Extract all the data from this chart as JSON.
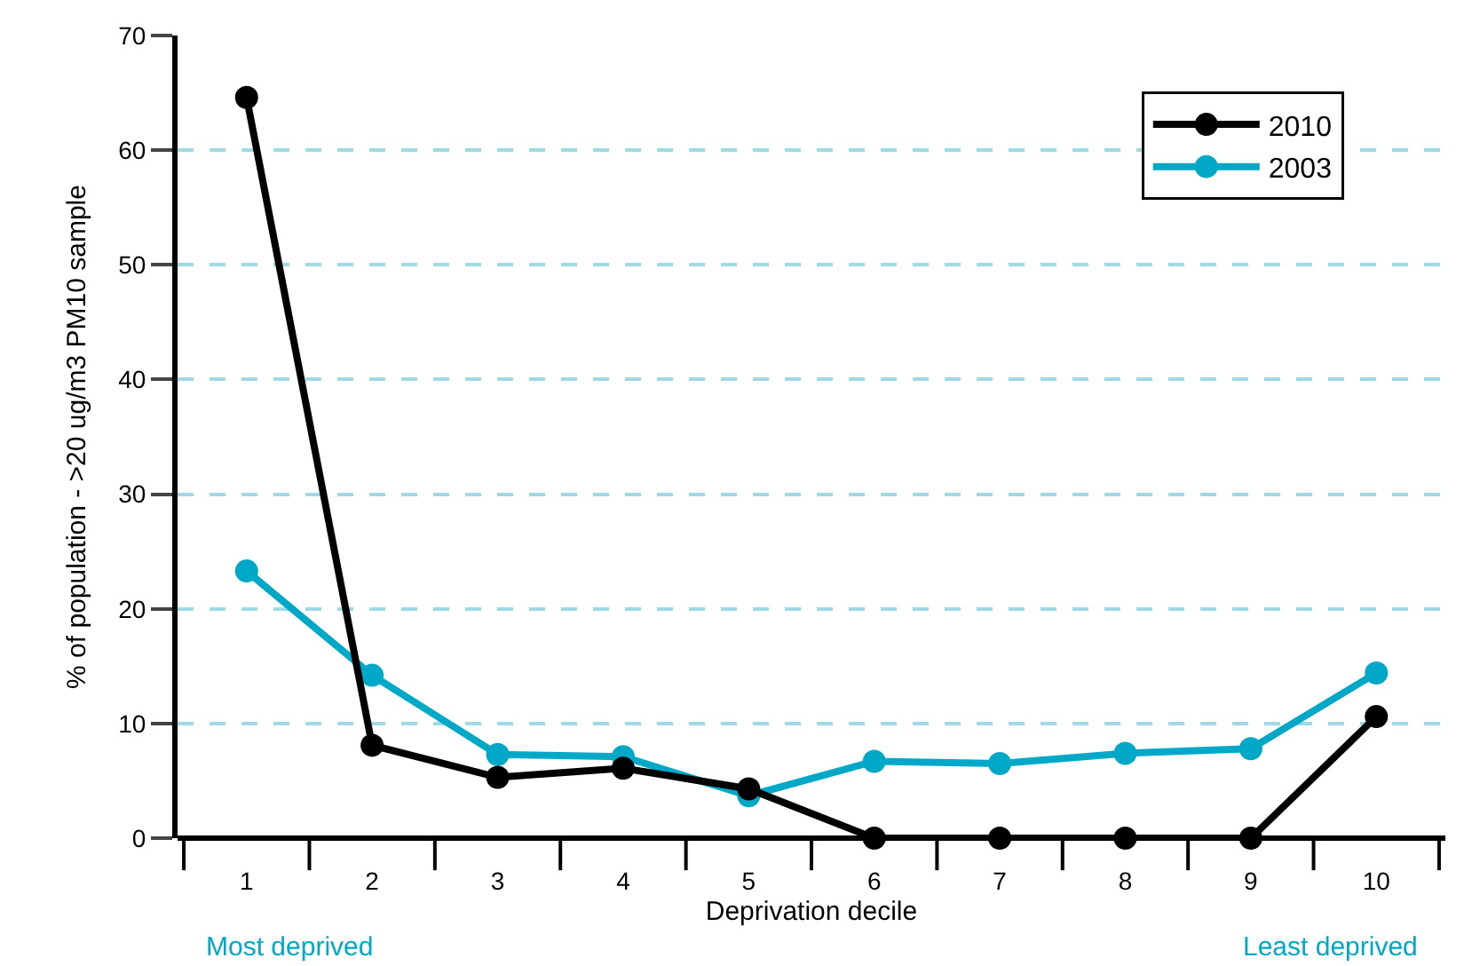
{
  "chart_data": {
    "type": "line",
    "xlabel": "Deprivation decile",
    "ylabel": "% of population - >20 ug/m3 PM10 sample",
    "categories": [
      "1",
      "2",
      "3",
      "4",
      "5",
      "6",
      "7",
      "8",
      "9",
      "10"
    ],
    "series": [
      {
        "name": "2010",
        "color": "#000000",
        "values": [
          64.6,
          8.1,
          5.3,
          6.1,
          4.3,
          0,
          0,
          0,
          0,
          10.6
        ]
      },
      {
        "name": "2003",
        "color": "#00a8c8",
        "values": [
          23.3,
          14.2,
          7.3,
          7.1,
          3.7,
          6.7,
          6.5,
          7.4,
          7.8,
          14.4
        ]
      }
    ],
    "ylim": [
      0,
      70
    ],
    "yticks": [
      0,
      10,
      20,
      30,
      40,
      50,
      60,
      70
    ],
    "grid": "y",
    "legend": "top right",
    "marker": "circle",
    "line_style": "solid",
    "annotations": [
      "Most deprived",
      "Least deprived"
    ]
  }
}
